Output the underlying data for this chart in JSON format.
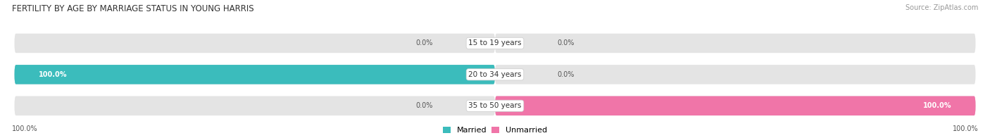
{
  "title": "FERTILITY BY AGE BY MARRIAGE STATUS IN YOUNG HARRIS",
  "source": "Source: ZipAtlas.com",
  "rows": [
    {
      "label": "15 to 19 years",
      "married": 0.0,
      "unmarried": 0.0
    },
    {
      "label": "20 to 34 years",
      "married": 100.0,
      "unmarried": 0.0
    },
    {
      "label": "35 to 50 years",
      "married": 0.0,
      "unmarried": 100.0
    }
  ],
  "married_color": "#3bbcbc",
  "unmarried_color": "#f075a8",
  "bar_bg_color": "#e4e4e4",
  "bar_bg_color2": "#ebebeb",
  "figsize": [
    14.06,
    1.96
  ],
  "dpi": 100,
  "title_fontsize": 8.5,
  "source_fontsize": 7,
  "label_fontsize": 7.5,
  "value_fontsize": 7,
  "legend_fontsize": 8,
  "axis_label_left": "100.0%",
  "axis_label_right": "100.0%"
}
